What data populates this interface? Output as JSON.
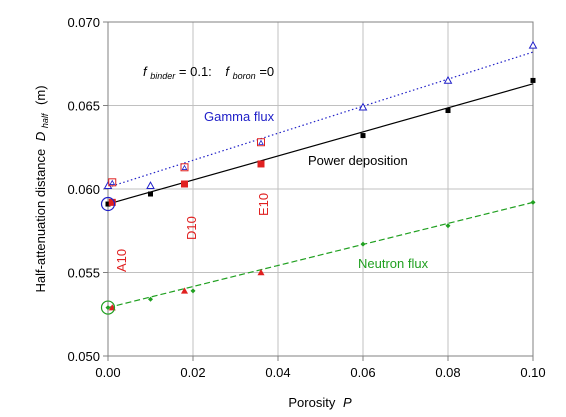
{
  "chart_data": {
    "type": "scatter",
    "xlabel": "Porosity",
    "xlabel_symbol": "P",
    "ylabel": "Half-attenuation distance",
    "ylabel_symbol": "D",
    "ylabel_subscript": "half",
    "ylabel_unit": "(m)",
    "xlim": [
      0.0,
      0.1
    ],
    "ylim": [
      0.05,
      0.07
    ],
    "xticks": [
      0.0,
      0.02,
      0.04,
      0.06,
      0.08,
      0.1
    ],
    "xtick_labels": [
      "0.00",
      "0.02",
      "0.04",
      "0.06",
      "0.08",
      "0.10"
    ],
    "yticks": [
      0.05,
      0.055,
      0.06,
      0.065,
      0.07
    ],
    "ytick_labels": [
      "0.050",
      "0.055",
      "0.060",
      "0.065",
      "0.070"
    ],
    "grid": true,
    "condition_label": {
      "f1": "f",
      "f1_sub": "binder",
      "f1_val": " = 0.1:",
      "f2": "f",
      "f2_sub": "boron",
      "f2_val": " =0"
    },
    "series": [
      {
        "name": "Gamma flux",
        "color": "#2020c8",
        "marker": "triangle-open",
        "line": "dotted",
        "points": [
          [
            0.0,
            0.0602
          ],
          [
            0.01,
            0.0602
          ],
          [
            0.06,
            0.0649
          ],
          [
            0.08,
            0.0665
          ],
          [
            0.1,
            0.0686
          ]
        ],
        "fit": [
          [
            0.0,
            0.0601
          ],
          [
            0.1,
            0.0682
          ]
        ]
      },
      {
        "name": "Power deposition",
        "color": "#000000",
        "marker": "square-filled",
        "line": "solid",
        "points": [
          [
            0.0,
            0.0591
          ],
          [
            0.01,
            0.0597
          ],
          [
            0.06,
            0.0632
          ],
          [
            0.08,
            0.0647
          ],
          [
            0.1,
            0.0665
          ]
        ],
        "fit": [
          [
            0.0,
            0.0591
          ],
          [
            0.1,
            0.0663
          ]
        ]
      },
      {
        "name": "Neutron flux",
        "color": "#20a020",
        "marker": "diamond-filled",
        "line": "dashed",
        "points": [
          [
            0.0,
            0.0529
          ],
          [
            0.01,
            0.0534
          ],
          [
            0.02,
            0.0539
          ],
          [
            0.06,
            0.0567
          ],
          [
            0.08,
            0.0578
          ],
          [
            0.1,
            0.0592
          ]
        ],
        "fit": [
          [
            0.0,
            0.0529
          ],
          [
            0.1,
            0.0592
          ]
        ]
      }
    ],
    "red_samples": {
      "color": "#e02020",
      "gamma_squares": [
        [
          0.001,
          0.0604
        ],
        [
          0.018,
          0.0613
        ],
        [
          0.036,
          0.0628
        ]
      ],
      "power_squares": [
        [
          0.001,
          0.0592
        ],
        [
          0.018,
          0.0603
        ],
        [
          0.036,
          0.0615
        ]
      ],
      "neutron_triangles": [
        [
          0.001,
          0.0529
        ],
        [
          0.018,
          0.0539
        ],
        [
          0.036,
          0.055
        ]
      ],
      "labels": [
        {
          "text": "A10",
          "x": 0.001
        },
        {
          "text": "D10",
          "x": 0.018
        },
        {
          "text": "E10",
          "x": 0.036
        }
      ]
    },
    "circled_points": [
      {
        "x": 0.0,
        "y": 0.0591,
        "color": "#2020c8"
      },
      {
        "x": 0.0,
        "y": 0.0529,
        "color": "#20a020"
      }
    ]
  }
}
